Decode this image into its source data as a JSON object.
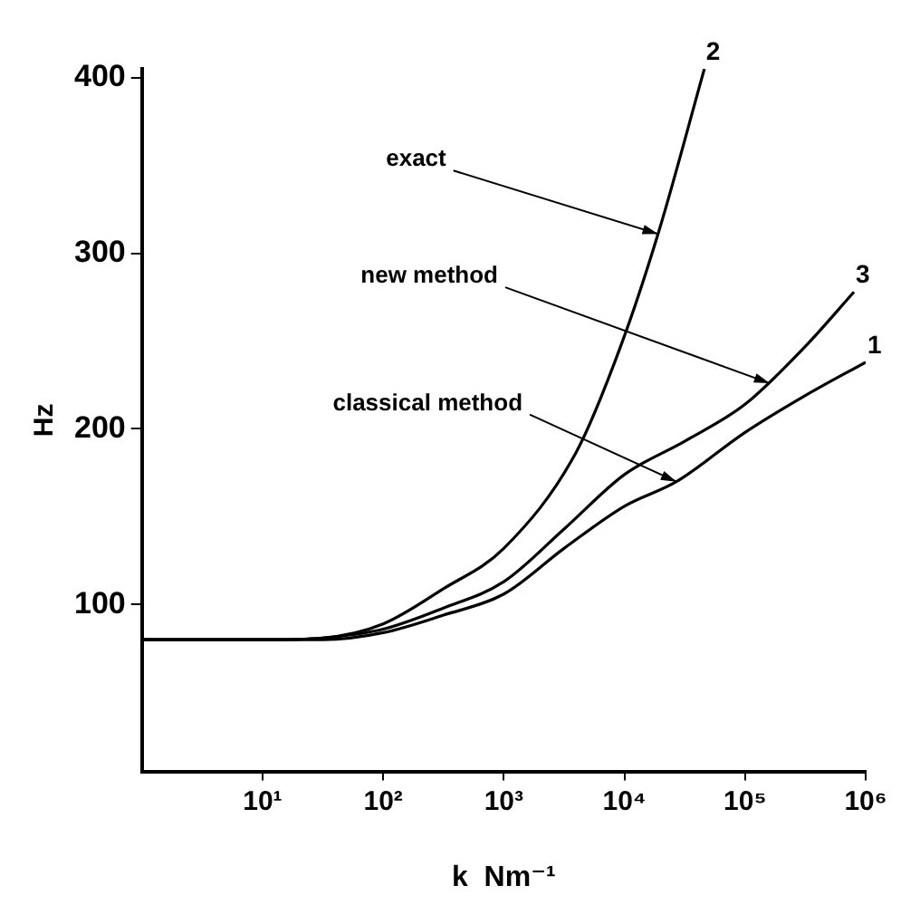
{
  "chart_data": {
    "type": "line",
    "xlabel": "k  Nm⁻¹",
    "ylabel": "Hz",
    "log": "x",
    "xlim": [
      1,
      1000000
    ],
    "ylim": [
      5,
      405
    ],
    "xticks": [
      {
        "value": 10,
        "label": "10¹"
      },
      {
        "value": 100,
        "label": "10²"
      },
      {
        "value": 1000,
        "label": "10³"
      },
      {
        "value": 10000,
        "label": "10⁴"
      },
      {
        "value": 100000,
        "label": "10⁵"
      },
      {
        "value": 1000000,
        "label": "10⁶"
      }
    ],
    "yticks": [
      100,
      200,
      300,
      400
    ],
    "grid": false,
    "legend": false,
    "marker": "none",
    "line_style": "solid",
    "series": [
      {
        "name": "1",
        "color": "#000000",
        "x": [
          1,
          10,
          31.6,
          100,
          316,
          1000,
          3160,
          10000,
          27000,
          100000,
          316000,
          1000000
        ],
        "values": [
          80,
          80,
          80,
          84,
          94,
          106,
          132,
          156,
          170,
          198,
          219,
          238
        ]
      },
      {
        "name": "2",
        "color": "#000000",
        "x": [
          1,
          10,
          31.6,
          100,
          316,
          1000,
          4000,
          9300,
          19000,
          46000
        ],
        "values": [
          80,
          80,
          81,
          89,
          109,
          132,
          187,
          247,
          311,
          405
        ]
      },
      {
        "name": "3",
        "color": "#000000",
        "x": [
          1,
          10,
          31.6,
          100,
          316,
          1000,
          3160,
          10000,
          31600,
          100000,
          316000,
          800000
        ],
        "values": [
          80,
          80,
          81,
          86,
          98,
          113,
          143,
          174,
          193,
          214,
          247,
          278
        ]
      }
    ],
    "annotations": [
      {
        "text": "exact",
        "x": 19000,
        "y": 311
      },
      {
        "text": "new method",
        "x": 160000,
        "y": 226
      },
      {
        "text": "classical method",
        "x": 27000,
        "y": 170
      }
    ]
  }
}
